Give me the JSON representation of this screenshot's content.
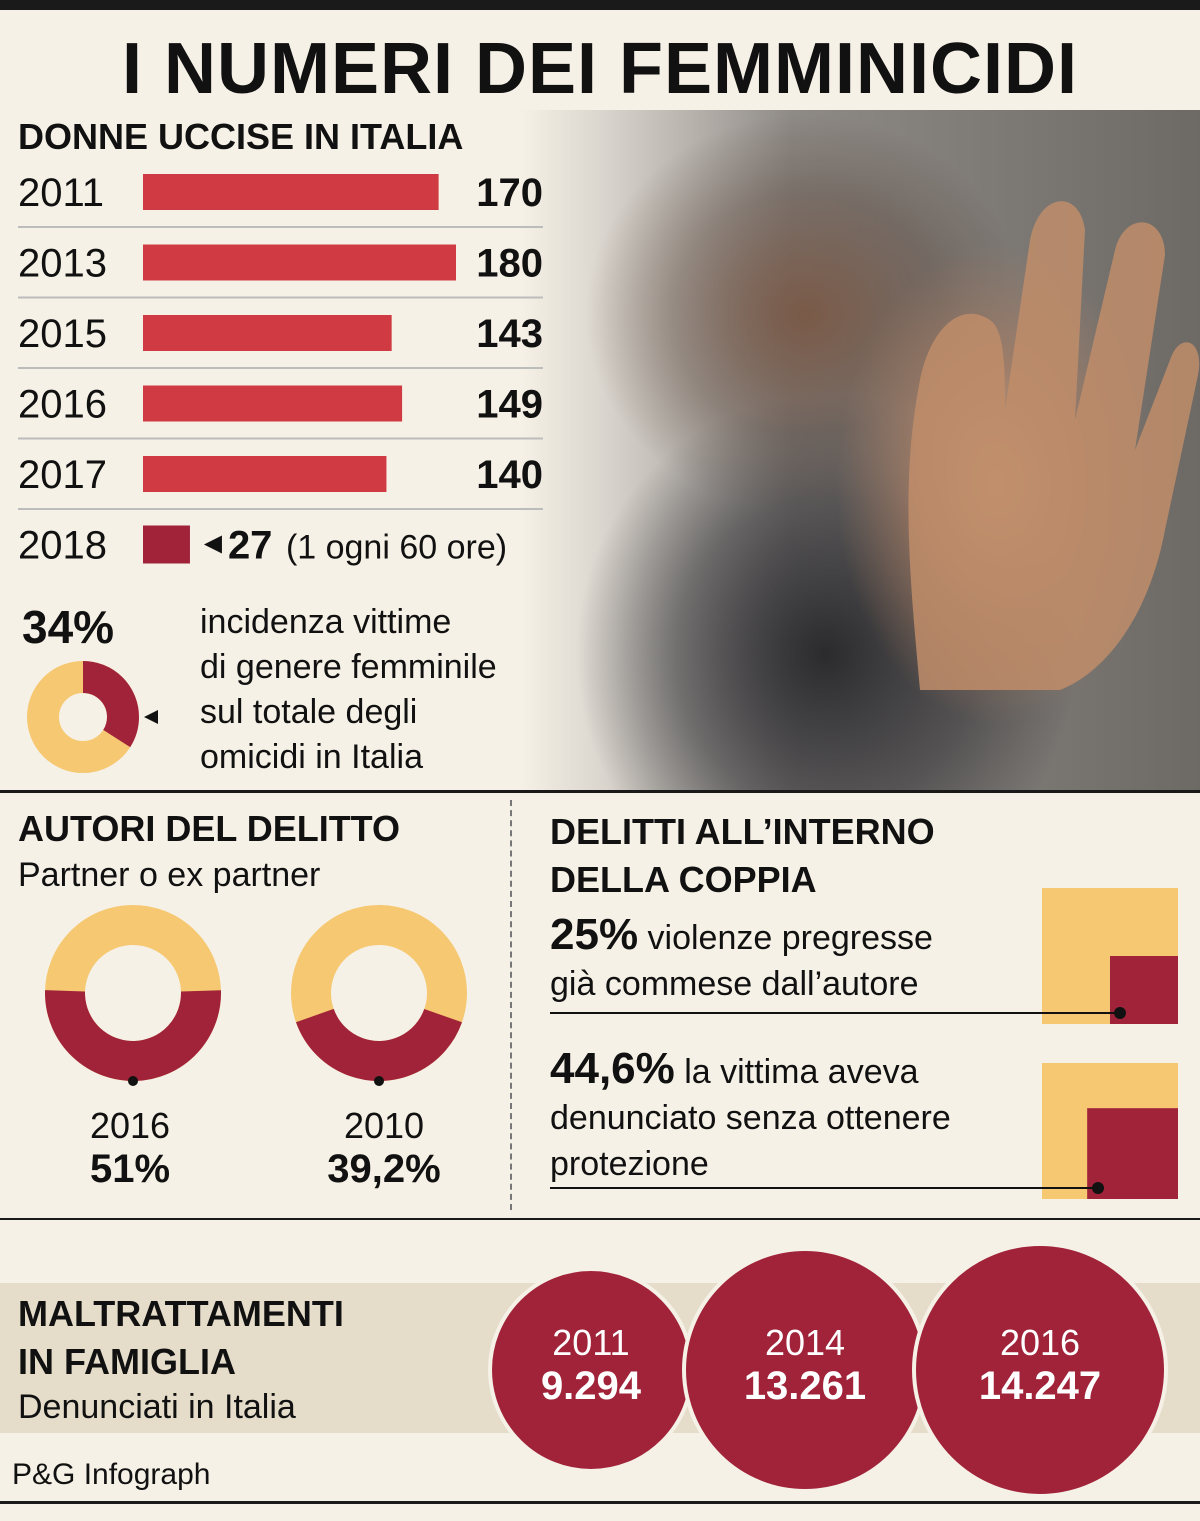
{
  "title": "I NUMERI DEI FEMMINICIDI",
  "colors": {
    "bar": "#d03a42",
    "dark_red": "#a0233a",
    "yellow": "#f5c871",
    "background": "#f6f1e6"
  },
  "chart_data": [
    {
      "type": "bar",
      "title": "DONNE UCCISE IN ITALIA",
      "categories": [
        "2011",
        "2013",
        "2015",
        "2016",
        "2017",
        "2018"
      ],
      "values": [
        170,
        180,
        143,
        149,
        140,
        27
      ],
      "value_labels": [
        "170",
        "180",
        "143",
        "149",
        "140",
        "27"
      ],
      "annotation_2018": "(1 ogni 60 ore)"
    },
    {
      "type": "pie",
      "title": "34%",
      "description_lines": [
        "incidenza vittime",
        "di genere femminile",
        "sul totale degli",
        "omicidi in Italia"
      ],
      "values": [
        34,
        66
      ]
    },
    {
      "type": "pie",
      "title": "AUTORI DEL DELITTO",
      "subtitle": "Partner o ex partner",
      "charts": [
        {
          "year": "2016",
          "label": "51%",
          "value": 51
        },
        {
          "year": "2010",
          "label": "39,2%",
          "value": 39.2
        }
      ]
    },
    {
      "type": "bar",
      "title_lines": [
        "DELITTI ALL’INTERNO",
        "DELLA COPPIA"
      ],
      "items": [
        {
          "pct": "25%",
          "text_lines": [
            "violenze pregresse",
            "già commese dall’autore"
          ],
          "value": 25
        },
        {
          "pct": "44,6%",
          "text_lines": [
            "la vittima aveva",
            "denunciato senza ottenere",
            "protezione"
          ],
          "value": 44.6
        }
      ]
    },
    {
      "type": "bar",
      "title_lines": [
        "MALTRATTAMENTI",
        "IN FAMIGLIA"
      ],
      "subtitle": "Denunciati in Italia",
      "categories": [
        "2011",
        "2014",
        "2016"
      ],
      "values": [
        9294,
        13261,
        14247
      ],
      "value_labels": [
        "9.294",
        "13.261",
        "14.247"
      ]
    }
  ],
  "credit": "P&G Infograph"
}
